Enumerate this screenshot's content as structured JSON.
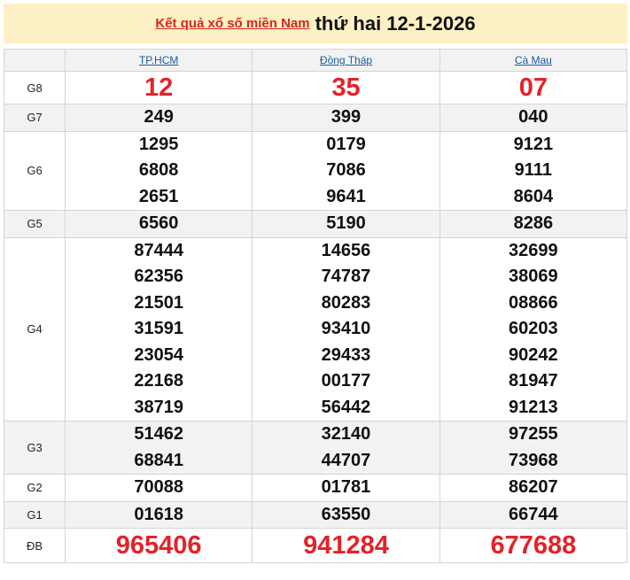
{
  "header": {
    "link": "Kết quả xổ số miền Nam",
    "date": "thứ hai 12-1-2026"
  },
  "provinces": [
    "TP.HCM",
    "Đồng Tháp",
    "Cà Mau"
  ],
  "colors": {
    "red": "#e4222a",
    "link": "#1b5a9e",
    "banner": "#fcf0c4"
  },
  "prizes": [
    {
      "label": "G8",
      "style": "r",
      "values": [
        [
          "12"
        ],
        [
          "35"
        ],
        [
          "07"
        ]
      ]
    },
    {
      "label": "G7",
      "style": "n",
      "values": [
        [
          "249"
        ],
        [
          "399"
        ],
        [
          "040"
        ]
      ]
    },
    {
      "label": "G6",
      "style": "n",
      "values": [
        [
          "1295",
          "6808",
          "2651"
        ],
        [
          "0179",
          "7086",
          "9641"
        ],
        [
          "9121",
          "9111",
          "8604"
        ]
      ]
    },
    {
      "label": "G5",
      "style": "n",
      "values": [
        [
          "6560"
        ],
        [
          "5190"
        ],
        [
          "8286"
        ]
      ]
    },
    {
      "label": "G4",
      "style": "n",
      "values": [
        [
          "87444",
          "62356",
          "21501",
          "31591",
          "23054",
          "22168",
          "38719"
        ],
        [
          "14656",
          "74787",
          "80283",
          "93410",
          "29433",
          "00177",
          "56442"
        ],
        [
          "32699",
          "38069",
          "08866",
          "60203",
          "90242",
          "81947",
          "91213"
        ]
      ]
    },
    {
      "label": "G3",
      "style": "n",
      "values": [
        [
          "51462",
          "68841"
        ],
        [
          "32140",
          "44707"
        ],
        [
          "97255",
          "73968"
        ]
      ]
    },
    {
      "label": "G2",
      "style": "n",
      "values": [
        [
          "70088"
        ],
        [
          "01781"
        ],
        [
          "86207"
        ]
      ]
    },
    {
      "label": "G1",
      "style": "n",
      "values": [
        [
          "01618"
        ],
        [
          "63550"
        ],
        [
          "66744"
        ]
      ]
    },
    {
      "label": "ĐB",
      "style": "db",
      "values": [
        [
          "965406"
        ],
        [
          "941284"
        ],
        [
          "677688"
        ]
      ]
    }
  ]
}
